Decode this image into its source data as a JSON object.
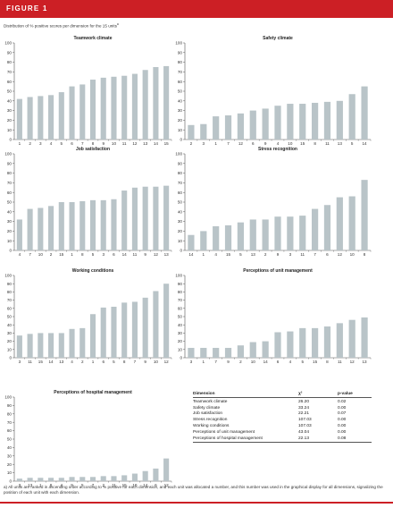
{
  "figure": {
    "label": "FIGURE 1",
    "subtitle": "Distribution of % positive scores per dimension for the 15 units",
    "subtitle_marker": "a",
    "banner_color": "#cc1f25",
    "bar_color": "#b9c4c8"
  },
  "chart_data": [
    {
      "type": "bar",
      "title": "Teamwork climate",
      "categories": [
        "1",
        "2",
        "3",
        "4",
        "5",
        "6",
        "7",
        "8",
        "9",
        "10",
        "11",
        "12",
        "13",
        "14",
        "15"
      ],
      "values": [
        42,
        44,
        45,
        46,
        49,
        55,
        57,
        62,
        64,
        65,
        66,
        68,
        72,
        75,
        76
      ],
      "ylim": [
        0,
        100
      ],
      "yticks": [
        0,
        10,
        20,
        30,
        40,
        50,
        60,
        70,
        80,
        90,
        100
      ],
      "grid": false
    },
    {
      "type": "bar",
      "title": "Safety climate",
      "categories": [
        "2",
        "3",
        "1",
        "7",
        "12",
        "6",
        "9",
        "4",
        "10",
        "15",
        "8",
        "11",
        "13",
        "5",
        "14"
      ],
      "values": [
        15,
        16,
        24,
        25,
        27,
        30,
        32,
        35,
        37,
        37,
        38,
        39,
        40,
        47,
        55
      ],
      "ylim": [
        0,
        100
      ],
      "yticks": [
        0,
        10,
        20,
        30,
        40,
        50,
        60,
        70,
        80,
        90,
        100
      ],
      "grid": false
    },
    {
      "type": "bar",
      "title": "Job satisfaction",
      "categories": [
        "4",
        "7",
        "10",
        "2",
        "15",
        "1",
        "8",
        "5",
        "3",
        "6",
        "14",
        "11",
        "9",
        "12",
        "13"
      ],
      "values": [
        32,
        43,
        44,
        46,
        50,
        50,
        51,
        52,
        52,
        53,
        62,
        65,
        66,
        66,
        67
      ],
      "ylim": [
        0,
        100
      ],
      "yticks": [
        0,
        10,
        20,
        30,
        40,
        50,
        60,
        70,
        80,
        90,
        100
      ],
      "grid": false
    },
    {
      "type": "bar",
      "title": "Stress recognition",
      "categories": [
        "14",
        "1",
        "4",
        "15",
        "5",
        "13",
        "2",
        "9",
        "3",
        "11",
        "7",
        "6",
        "12",
        "10",
        "8"
      ],
      "values": [
        16,
        20,
        25,
        26,
        29,
        32,
        32,
        35,
        35,
        36,
        43,
        47,
        55,
        56,
        73
      ],
      "ylim": [
        0,
        100
      ],
      "yticks": [
        0,
        10,
        20,
        30,
        40,
        50,
        60,
        70,
        80,
        90,
        100
      ],
      "grid": false
    },
    {
      "type": "bar",
      "title": "Working conditions",
      "categories": [
        "3",
        "11",
        "15",
        "14",
        "13",
        "4",
        "2",
        "1",
        "6",
        "5",
        "8",
        "7",
        "9",
        "10",
        "12"
      ],
      "values": [
        27,
        29,
        30,
        30,
        30,
        35,
        36,
        53,
        61,
        62,
        67,
        68,
        73,
        81,
        90
      ],
      "ylim": [
        0,
        100
      ],
      "yticks": [
        0,
        10,
        20,
        30,
        40,
        50,
        60,
        70,
        80,
        90,
        100
      ],
      "grid": false
    },
    {
      "type": "bar",
      "title": "Perceptions of unit management",
      "categories": [
        "3",
        "1",
        "7",
        "9",
        "2",
        "10",
        "14",
        "6",
        "4",
        "5",
        "15",
        "8",
        "11",
        "12",
        "13"
      ],
      "values": [
        12,
        12,
        12,
        12,
        15,
        19,
        20,
        31,
        32,
        36,
        36,
        38,
        42,
        46,
        49
      ],
      "ylim": [
        0,
        100
      ],
      "yticks": [
        0,
        10,
        20,
        30,
        40,
        50,
        60,
        70,
        80,
        90,
        100
      ],
      "grid": false
    },
    {
      "type": "bar",
      "title": "Perceptions of hospital management",
      "categories": [
        "3",
        "13",
        "1",
        "8",
        "4",
        "9",
        "5",
        "7",
        "2",
        "11",
        "15",
        "10",
        "14",
        "6",
        "12"
      ],
      "values": [
        3,
        4,
        4,
        4,
        4,
        5,
        5,
        5,
        6,
        6,
        7,
        9,
        12,
        15,
        27
      ],
      "ylim": [
        0,
        100
      ],
      "yticks": [
        0,
        10,
        20,
        30,
        40,
        50,
        60,
        70,
        80,
        90,
        100
      ],
      "grid": false
    }
  ],
  "table": {
    "headers": {
      "dimension": "Dimension",
      "chi": "χ²",
      "p": "p-value"
    },
    "rows": [
      {
        "dimension": "Teamwork climate",
        "chi": "26.20",
        "p": "0.02"
      },
      {
        "dimension": "Safety climate",
        "chi": "33.24",
        "p": "0.00"
      },
      {
        "dimension": "Job satisfaction",
        "chi": "22.21",
        "p": "0.07"
      },
      {
        "dimension": "Stress recognition",
        "chi": "107.03",
        "p": "0.00"
      },
      {
        "dimension": "Working conditions",
        "chi": "107.03",
        "p": "0.00"
      },
      {
        "dimension": "Perceptions of unit management",
        "chi": "43.04",
        "p": "0.00"
      },
      {
        "dimension": "Perceptions of hospital management",
        "chi": "22.13",
        "p": "0.08"
      }
    ]
  },
  "footnote": "a) All units are ranked in ascending order according to % positive for each dimension, and each unit was allocated a number, and this number was used in the graphical display for all dimensions, signalizing the position of each unit with each dimension."
}
